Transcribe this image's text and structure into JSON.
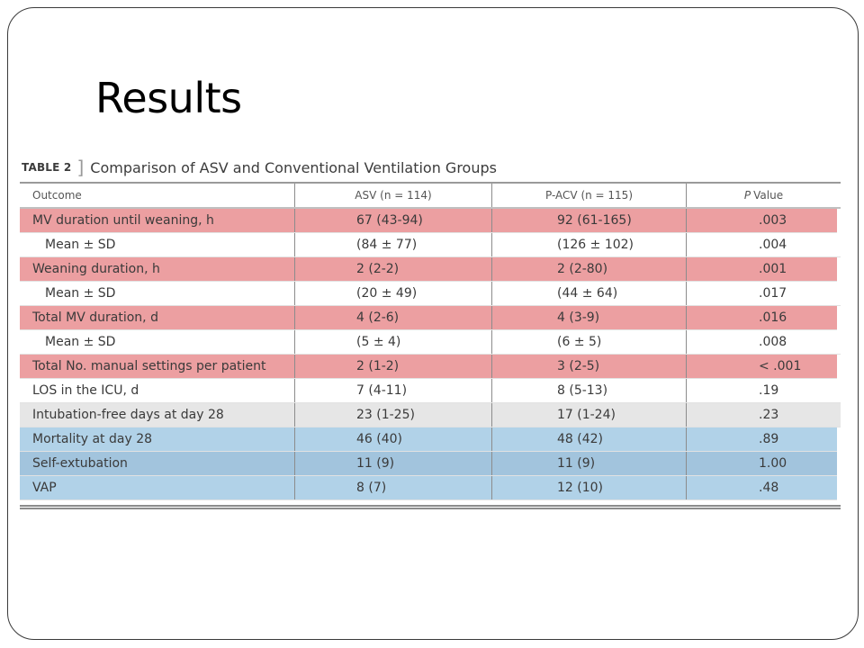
{
  "slide": {
    "title": "Results"
  },
  "table": {
    "label": "TABLE 2",
    "bracket": "]",
    "caption": "Comparison of ASV and Conventional Ventilation Groups",
    "headers": {
      "outcome": "Outcome",
      "asv": "ASV (n = 114)",
      "pacv": "P-ACV (n = 115)",
      "p_italic": "P",
      "p_rest": "Value"
    },
    "rows": [
      {
        "outcome": "MV duration until weaning, h",
        "asv": "67 (43-94)",
        "pacv": "92 (61-165)",
        "p": ".003",
        "highlight": "red"
      },
      {
        "outcome": "Mean ± SD",
        "asv": "(84 ± 77)",
        "pacv": "(126 ± 102)",
        "p": ".004",
        "highlight": "none"
      },
      {
        "outcome": "Weaning duration, h",
        "asv": "2 (2-2)",
        "pacv": "2 (2-80)",
        "p": ".001",
        "highlight": "red"
      },
      {
        "outcome": "Mean ± SD",
        "asv": "(20 ± 49)",
        "pacv": "(44 ± 64)",
        "p": ".017",
        "highlight": "none"
      },
      {
        "outcome": "Total MV duration, d",
        "asv": "4 (2-6)",
        "pacv": "4 (3-9)",
        "p": ".016",
        "highlight": "red"
      },
      {
        "outcome": "Mean ± SD",
        "asv": "(5 ± 4)",
        "pacv": "(6 ± 5)",
        "p": ".008",
        "highlight": "none"
      },
      {
        "outcome": "Total No. manual settings per patient",
        "asv": "2 (1-2)",
        "pacv": "3 (2-5)",
        "p": "< .001",
        "highlight": "red"
      },
      {
        "outcome": "LOS in the ICU, d",
        "asv": "7 (4-11)",
        "pacv": "8 (5-13)",
        "p": ".19",
        "highlight": "none"
      },
      {
        "outcome": "Intubation-free days at day 28",
        "asv": "23 (1-25)",
        "pacv": "17 (1-24)",
        "p": ".23",
        "highlight": "grey"
      },
      {
        "outcome": "Mortality at day 28",
        "asv": "46 (40)",
        "pacv": "48 (42)",
        "p": ".89",
        "highlight": "blue"
      },
      {
        "outcome": "Self-extubation",
        "asv": "11 (9)",
        "pacv": "11 (9)",
        "p": "1.00",
        "highlight": "blue-dark"
      },
      {
        "outcome": "VAP",
        "asv": "8 (7)",
        "pacv": "12 (10)",
        "p": ".48",
        "highlight": "blue"
      }
    ]
  },
  "colors": {
    "highlight_red": "#ec9fa1",
    "highlight_grey": "#e6e6e6",
    "highlight_blue": "#b1d2e8",
    "highlight_blue_dark": "#a2c4dd",
    "text": "#3a3a3a"
  }
}
